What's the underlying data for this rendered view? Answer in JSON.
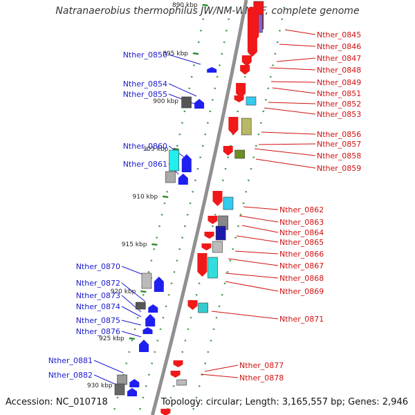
{
  "title": "Natranaerobius thermophilus JW/NM-WN-LF, complete genome",
  "footer": {
    "accession_text": "Accession: NC_010718",
    "summary_text": "Topology: circular; Length: 3,165,557 bp; Genes: 2,946"
  },
  "colors": {
    "axis": "#909090",
    "tick": "#2e8b2e",
    "forward_gene": "#1f1ff0",
    "reverse_gene": "#f01818",
    "forward_label": "#1a1acc",
    "reverse_label": "#d01010"
  },
  "kbp_ticks": [
    "890 kbp",
    "895 kbp",
    "900 kbp",
    "905 kbp",
    "910 kbp",
    "915 kbp",
    "920 kbp",
    "925 kbp",
    "930 kbp"
  ],
  "forward_genes": [
    "Nther_0850",
    "Nther_0854",
    "Nther_0855",
    "Nther_0860",
    "Nther_0861",
    "Nther_0870",
    "Nther_0872",
    "Nther_0873",
    "Nther_0874",
    "Nther_0875",
    "Nther_0876",
    "Nther_0881",
    "Nther_0882"
  ],
  "reverse_genes": [
    "Nther_0845",
    "Nther_0846",
    "Nther_0847",
    "Nther_0848",
    "Nther_0849",
    "Nther_0851",
    "Nther_0852",
    "Nther_0853",
    "Nther_0856",
    "Nther_0857",
    "Nther_0858",
    "Nther_0859",
    "Nther_0862",
    "Nther_0863",
    "Nther_0864",
    "Nther_0865",
    "Nther_0866",
    "Nther_0867",
    "Nther_0868",
    "Nther_0869",
    "Nther_0871",
    "Nther_0877",
    "Nther_0878"
  ]
}
